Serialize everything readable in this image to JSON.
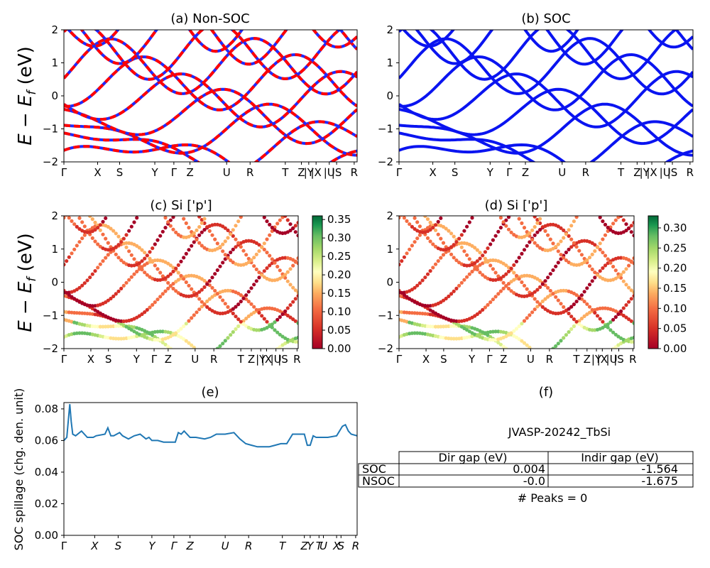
{
  "colors": {
    "nonsoc_red": "#ff0000",
    "nonsoc_blue": "#1f2bff",
    "soc_blue": "#0a14f0",
    "spillage_line": "#1f77b4"
  },
  "chart_data": [
    {
      "type": "line",
      "title": "(a) Non-SOC",
      "ylabel": "E − E_f (eV)",
      "ylim": [
        -2,
        2
      ],
      "yticks": [
        "2",
        "1",
        "0",
        "−1",
        "−2"
      ],
      "kpath_labels": [
        "Γ",
        "X",
        "S",
        "Y",
        "Γ",
        "Z",
        "U",
        "R",
        "T",
        "Z",
        "|Y",
        "|X",
        "|U",
        "|S",
        "R"
      ],
      "description_series": [
        "band curves red dashed with blue (spin-up/down overlaid)"
      ]
    },
    {
      "type": "line",
      "title": "(b) SOC",
      "ylim": [
        -2,
        2
      ],
      "yticks": [
        "2",
        "1",
        "0",
        "−1",
        "−2"
      ],
      "kpath_labels": [
        "Γ",
        "X",
        "S",
        "Y",
        "Γ",
        "Z",
        "U",
        "R",
        "T",
        "Z",
        "|Y",
        "|X",
        "|U",
        "|S",
        "R"
      ]
    },
    {
      "type": "scatter",
      "title": "(c)  Si ['p']",
      "ylabel": "E − E_f (eV)",
      "ylim": [
        -2,
        2
      ],
      "yticks": [
        "2",
        "1",
        "0",
        "−1",
        "−2"
      ],
      "kpath_labels": [
        "Γ",
        "X",
        "S",
        "Y",
        "Γ",
        "Z",
        "U",
        "R",
        "T",
        "Z",
        "|Y",
        "|X",
        "|U",
        "|S",
        "R"
      ],
      "colorbar_ticks": [
        "0.35",
        "0.30",
        "0.25",
        "0.20",
        "0.15",
        "0.10",
        "0.05",
        "0.00"
      ],
      "colorbar_max": 0.36
    },
    {
      "type": "scatter",
      "title": "(d) Si ['p']",
      "ylim": [
        -2,
        2
      ],
      "yticks": [
        "2",
        "1",
        "0",
        "−1",
        "−2"
      ],
      "kpath_labels": [
        "Γ",
        "X",
        "S",
        "Y",
        "Γ",
        "Z",
        "U",
        "R",
        "T",
        "Z",
        "|Y",
        "|X",
        "|U",
        "|S",
        "R"
      ],
      "colorbar_ticks": [
        "0.30",
        "0.25",
        "0.20",
        "0.15",
        "0.10",
        "0.05",
        "0.00"
      ],
      "colorbar_max": 0.33
    },
    {
      "type": "line",
      "title": "(e)",
      "ylabel": "SOC spillage (chg. den. unit)",
      "ylim": [
        0,
        0.084
      ],
      "yticks": [
        "0.08",
        "0.06",
        "0.04",
        "0.02",
        "0.00"
      ],
      "ytick_values": [
        0.08,
        0.06,
        0.04,
        0.02,
        0.0
      ],
      "kpath_labels": [
        "Γ",
        "X",
        "S",
        "Y",
        "Γ",
        "Z",
        "U",
        "R",
        "T",
        "Z",
        "Y",
        "T",
        "U",
        "X",
        "S",
        "R"
      ],
      "x": [
        0,
        0.01,
        0.02,
        0.025,
        0.03,
        0.04,
        0.06,
        0.08,
        0.09,
        0.1,
        0.11,
        0.14,
        0.15,
        0.16,
        0.17,
        0.19,
        0.2,
        0.22,
        0.24,
        0.26,
        0.28,
        0.29,
        0.3,
        0.32,
        0.34,
        0.36,
        0.38,
        0.39,
        0.4,
        0.41,
        0.43,
        0.45,
        0.48,
        0.5,
        0.52,
        0.55,
        0.58,
        0.6,
        0.62,
        0.64,
        0.66,
        0.68,
        0.7,
        0.72,
        0.74,
        0.76,
        0.78,
        0.8,
        0.82,
        0.83,
        0.84,
        0.85,
        0.86,
        0.87,
        0.88,
        0.9,
        0.93,
        0.95,
        0.96,
        0.97,
        0.98,
        1.0
      ],
      "y": [
        0.06,
        0.062,
        0.083,
        0.072,
        0.064,
        0.063,
        0.066,
        0.062,
        0.062,
        0.062,
        0.063,
        0.064,
        0.068,
        0.063,
        0.063,
        0.065,
        0.063,
        0.061,
        0.063,
        0.064,
        0.061,
        0.062,
        0.06,
        0.06,
        0.059,
        0.059,
        0.059,
        0.065,
        0.064,
        0.066,
        0.062,
        0.062,
        0.061,
        0.062,
        0.064,
        0.064,
        0.065,
        0.061,
        0.058,
        0.057,
        0.056,
        0.056,
        0.056,
        0.057,
        0.058,
        0.058,
        0.064,
        0.064,
        0.064,
        0.057,
        0.057,
        0.063,
        0.062,
        0.062,
        0.062,
        0.062,
        0.063,
        0.069,
        0.07,
        0.066,
        0.064,
        0.063
      ]
    }
  ],
  "panel_f": {
    "title": "(f)",
    "material": "JVASP-20242_TbSi",
    "table": {
      "headers": [
        "Dir gap (eV)",
        "Indir gap (eV)"
      ],
      "rows": [
        {
          "label": "SOC",
          "dir": "0.004",
          "indir": "-1.564"
        },
        {
          "label": "NSOC",
          "dir": "-0.0",
          "indir": "-1.675"
        }
      ]
    },
    "peaks": "# Peaks = 0"
  }
}
